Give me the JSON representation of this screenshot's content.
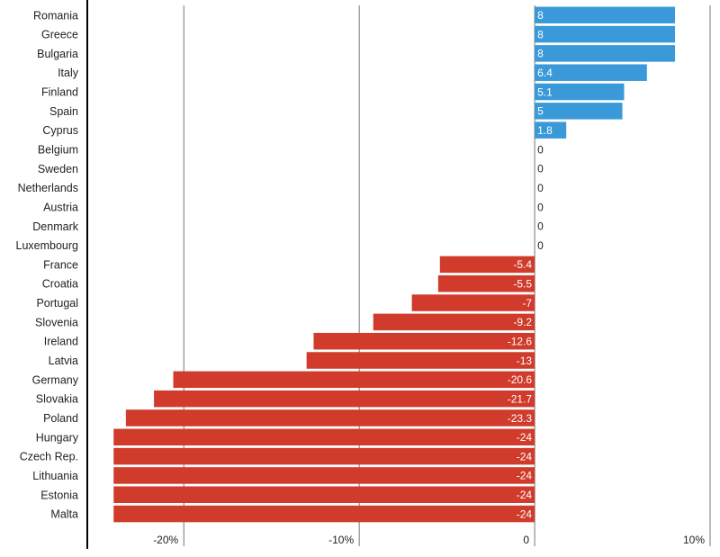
{
  "chart_data": {
    "type": "bar",
    "orientation": "horizontal",
    "categories": [
      "Romania",
      "Greece",
      "Bulgaria",
      "Italy",
      "Finland",
      "Spain",
      "Cyprus",
      "Belgium",
      "Sweden",
      "Netherlands",
      "Austria",
      "Denmark",
      "Luxembourg",
      "France",
      "Croatia",
      "Portugal",
      "Slovenia",
      "Ireland",
      "Latvia",
      "Germany",
      "Slovakia",
      "Poland",
      "Hungary",
      "Czech Rep.",
      "Lithuania",
      "Estonia",
      "Malta"
    ],
    "values": [
      8,
      8,
      8,
      6.4,
      5.1,
      5,
      1.8,
      0,
      0,
      0,
      0,
      0,
      0,
      -5.4,
      -5.5,
      -7,
      -9.2,
      -12.6,
      -13,
      -20.6,
      -21.7,
      -23.3,
      -24,
      -24,
      -24,
      -24,
      -24
    ],
    "value_labels": [
      "8",
      "8",
      "8",
      "6.4",
      "5.1",
      "5",
      "1.8",
      "0",
      "0",
      "0",
      "0",
      "0",
      "0",
      "-5.4",
      "-5.5",
      "-7",
      "-9.2",
      "-12.6",
      "-13",
      "-20.6",
      "-21.7",
      "-23.3",
      "-24",
      "-24",
      "-24",
      "-24",
      "-24"
    ],
    "xlim": [
      -25.5,
      10
    ],
    "x_ticks": [
      -20,
      -10,
      0,
      10
    ],
    "x_tick_labels": [
      "-20%",
      "-10%",
      "0",
      "10%"
    ],
    "grid": true,
    "colors": {
      "positive": "#3a9ad9",
      "negative": "#d03b2b"
    },
    "title": "",
    "xlabel": "",
    "ylabel": ""
  }
}
